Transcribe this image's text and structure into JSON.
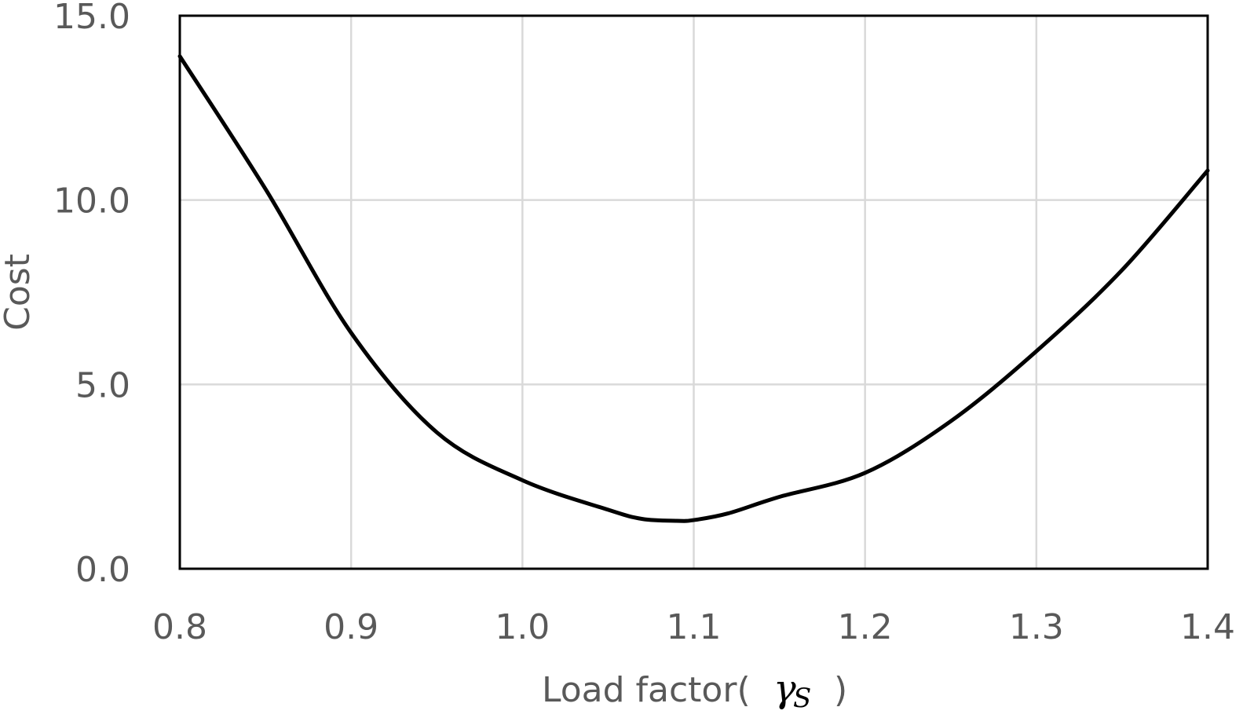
{
  "chart_data": {
    "type": "line",
    "title": "",
    "xlabel": "Load factor(",
    "xlabel_symbol": "γ",
    "xlabel_subscript": "S",
    "xlabel_close": ")",
    "ylabel": "Cost",
    "xlim": [
      0.8,
      1.4
    ],
    "ylim": [
      0.0,
      15.0
    ],
    "x_ticks": [
      0.8,
      0.9,
      1.0,
      1.1,
      1.2,
      1.3,
      1.4
    ],
    "x_tick_labels": [
      "0.8",
      "0.9",
      "1.0",
      "1.1",
      "1.2",
      "1.3",
      "1.4"
    ],
    "y_ticks": [
      0.0,
      5.0,
      10.0,
      15.0
    ],
    "y_tick_labels": [
      "0.0",
      "5.0",
      "10.0",
      "15.0"
    ],
    "grid": true,
    "legend": "none",
    "series": [
      {
        "name": "Cost",
        "color": "#000000",
        "x": [
          0.8,
          0.85,
          0.9,
          0.95,
          1.0,
          1.05,
          1.07,
          1.09,
          1.1,
          1.12,
          1.15,
          1.2,
          1.25,
          1.3,
          1.35,
          1.4
        ],
        "y": [
          13.9,
          10.3,
          6.4,
          3.7,
          2.4,
          1.6,
          1.35,
          1.3,
          1.32,
          1.5,
          1.95,
          2.6,
          4.0,
          5.9,
          8.1,
          10.8
        ]
      }
    ]
  }
}
